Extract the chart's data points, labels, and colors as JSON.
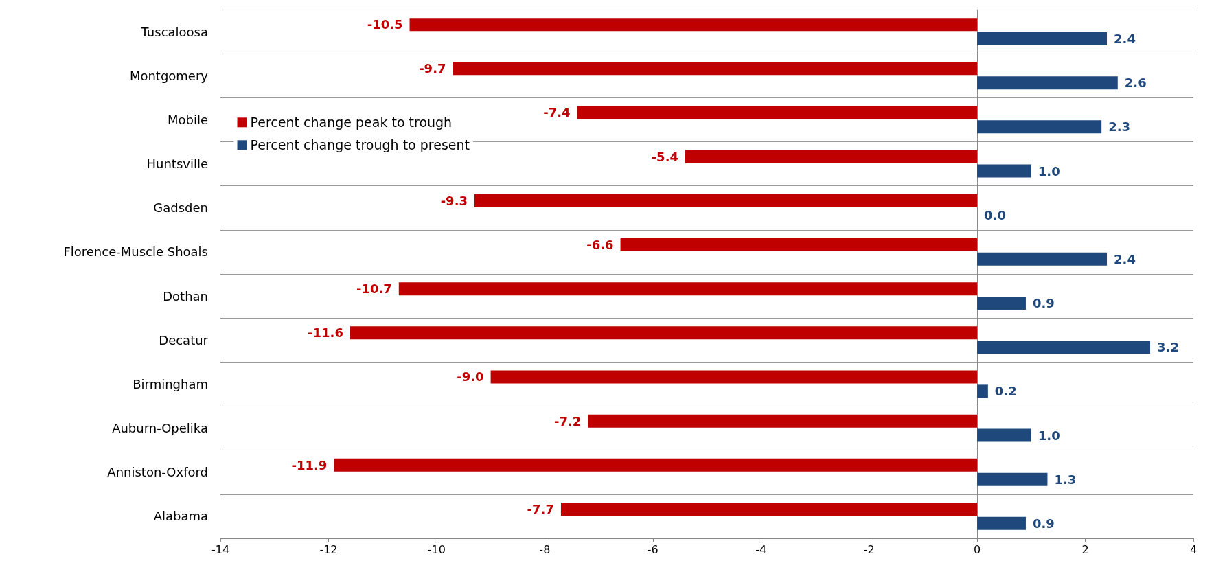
{
  "chart_data": {
    "type": "bar",
    "orientation": "horizontal",
    "categories": [
      "Tuscaloosa",
      "Montgomery",
      "Mobile",
      "Huntsville",
      "Gadsden",
      "Florence-Muscle Shoals",
      "Dothan",
      "Decatur",
      "Birmingham",
      "Auburn-Opelika",
      "Anniston-Oxford",
      "Alabama"
    ],
    "series": [
      {
        "name": "Percent change peak to trough",
        "color": "#c00000",
        "values": [
          -10.5,
          -9.7,
          -7.4,
          -5.4,
          -9.3,
          -6.6,
          -10.7,
          -11.6,
          -9.0,
          -7.2,
          -11.9,
          -7.7
        ],
        "value_labels": [
          "-10.5",
          "-9.7",
          "-7.4",
          "-5.4",
          "-9.3",
          "-6.6",
          "-10.7",
          "-11.6",
          "-9.0",
          "-7.2",
          "-11.9",
          "-7.7"
        ]
      },
      {
        "name": "Percent change trough to present",
        "color": "#1f497d",
        "values": [
          2.4,
          2.6,
          2.3,
          1.0,
          0.0,
          2.4,
          0.9,
          3.2,
          0.2,
          1.0,
          1.3,
          0.9
        ],
        "value_labels": [
          "2.4",
          "2.6",
          "2.3",
          "1.0",
          "0.0",
          "2.4",
          "0.9",
          "3.2",
          "0.2",
          "1.0",
          "1.3",
          "0.9"
        ]
      }
    ],
    "xlim": [
      -14,
      4
    ],
    "xticks": [
      -14,
      -12,
      -10,
      -8,
      -6,
      -4,
      -2,
      0,
      2,
      4
    ],
    "grid": "y",
    "legend": "top left"
  }
}
